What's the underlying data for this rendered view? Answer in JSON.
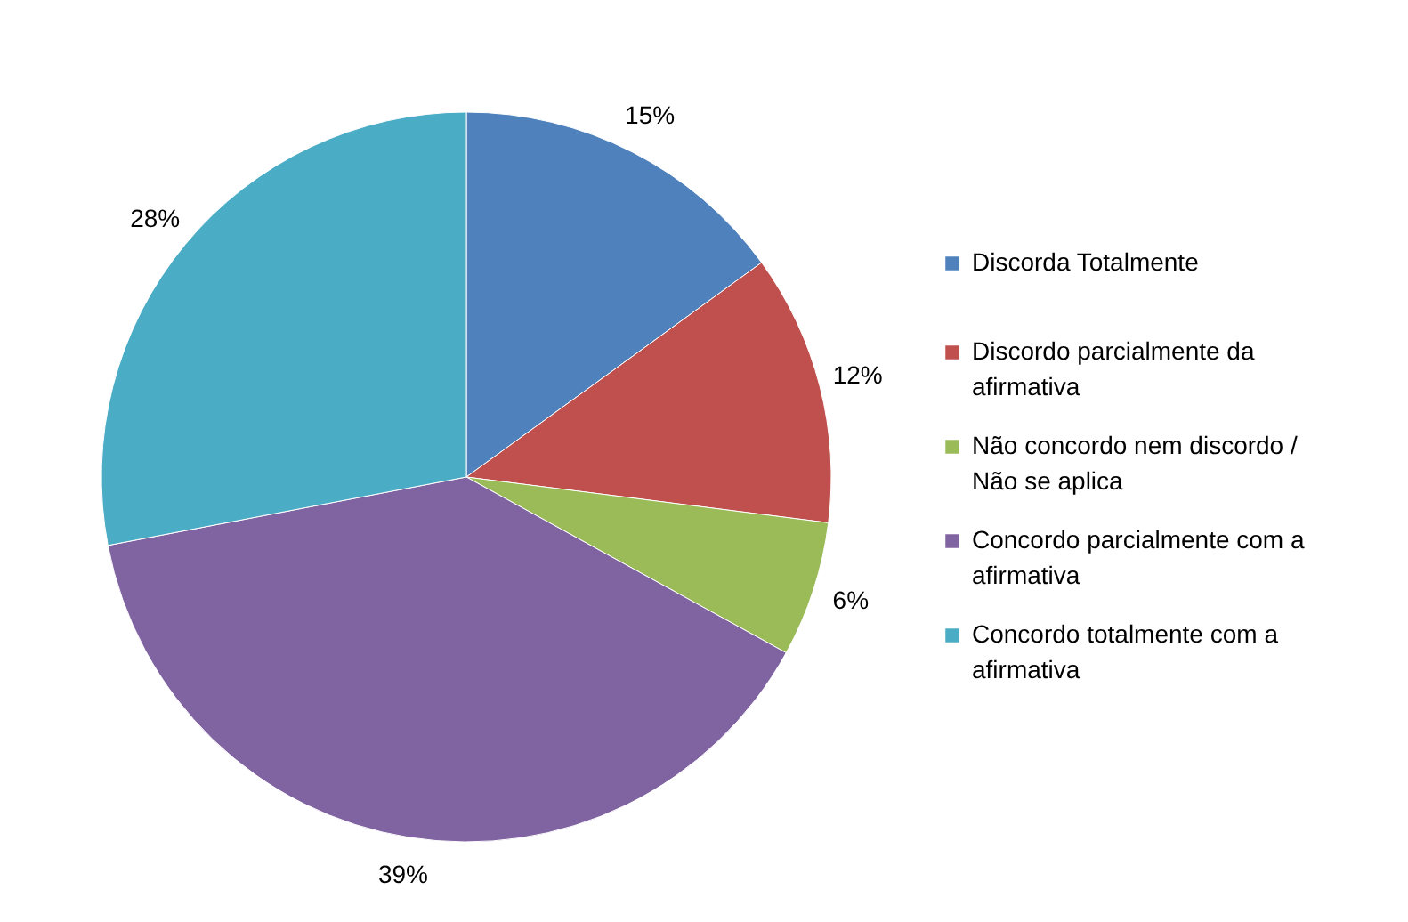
{
  "chart_data": {
    "type": "pie",
    "categories": [
      "Discorda Totalmente",
      "Discordo parcialmente da afirmativa",
      "Não concordo nem discordo / Não se aplica",
      "Concordo parcialmente com a afirmativa",
      "Concordo totalmente com a afirmativa"
    ],
    "values": [
      15,
      12,
      6,
      39,
      28
    ],
    "value_labels": [
      "15%",
      "12%",
      "6%",
      "39%",
      "28%"
    ],
    "colors": [
      "#4f81bd",
      "#c0504d",
      "#9bbb59",
      "#8064a2",
      "#4bacc6"
    ],
    "legend": "right"
  }
}
